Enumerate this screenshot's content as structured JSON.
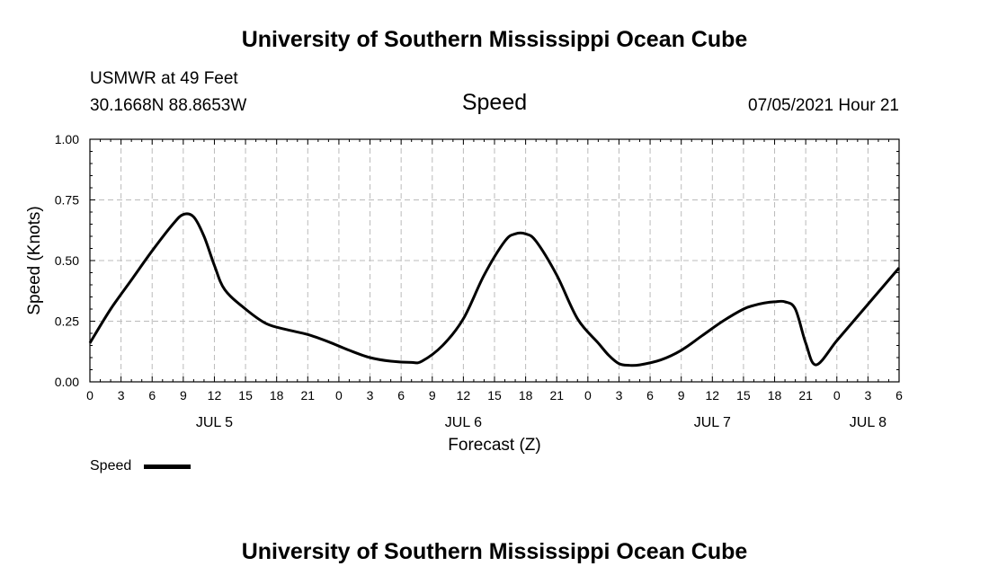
{
  "header": {
    "title_top": "University of Southern Mississippi Ocean Cube",
    "station": "USMWR at 49 Feet",
    "coords": "30.1668N  88.8653W",
    "chart_title": "Speed",
    "datetime": "07/05/2021 Hour 21"
  },
  "footer": {
    "title_bottom": "University of Southern Mississippi Ocean Cube"
  },
  "legend": {
    "label": "Speed"
  },
  "colors": {
    "line": "#000000",
    "grid": "#bbbbbb"
  },
  "chart_data": {
    "type": "line",
    "title": "Speed",
    "xlabel": "Forecast (Z)",
    "ylabel": "Speed (Knots)",
    "ylim": [
      0,
      1
    ],
    "xlim": [
      0,
      78
    ],
    "x_unit": "hours from 07/05 00Z",
    "grid": true,
    "legend_position": "bottom-left",
    "yticks": [
      {
        "value": 0,
        "label": "0.00"
      },
      {
        "value": 0.25,
        "label": "0.25"
      },
      {
        "value": 0.5,
        "label": "0.50"
      },
      {
        "value": 0.75,
        "label": "0.75"
      },
      {
        "value": 1,
        "label": "1.00"
      }
    ],
    "xticks": [
      {
        "value": 0,
        "label": "0"
      },
      {
        "value": 3,
        "label": "3"
      },
      {
        "value": 6,
        "label": "6"
      },
      {
        "value": 9,
        "label": "9"
      },
      {
        "value": 12,
        "label": "12"
      },
      {
        "value": 15,
        "label": "15"
      },
      {
        "value": 18,
        "label": "18"
      },
      {
        "value": 21,
        "label": "21"
      },
      {
        "value": 24,
        "label": "0"
      },
      {
        "value": 27,
        "label": "3"
      },
      {
        "value": 30,
        "label": "6"
      },
      {
        "value": 33,
        "label": "9"
      },
      {
        "value": 36,
        "label": "12"
      },
      {
        "value": 39,
        "label": "15"
      },
      {
        "value": 42,
        "label": "18"
      },
      {
        "value": 45,
        "label": "21"
      },
      {
        "value": 48,
        "label": "0"
      },
      {
        "value": 51,
        "label": "3"
      },
      {
        "value": 54,
        "label": "6"
      },
      {
        "value": 57,
        "label": "9"
      },
      {
        "value": 60,
        "label": "12"
      },
      {
        "value": 63,
        "label": "15"
      },
      {
        "value": 66,
        "label": "18"
      },
      {
        "value": 69,
        "label": "21"
      },
      {
        "value": 72,
        "label": "0"
      },
      {
        "value": 75,
        "label": "3"
      },
      {
        "value": 78,
        "label": "6"
      }
    ],
    "day_labels": [
      {
        "value": 12,
        "label": "JUL 5"
      },
      {
        "value": 36,
        "label": "JUL 6"
      },
      {
        "value": 60,
        "label": "JUL 7"
      },
      {
        "value": 75,
        "label": "JUL 8"
      }
    ],
    "series": [
      {
        "name": "Speed",
        "x": [
          0,
          2,
          4,
          6,
          8,
          9,
          10,
          11,
          12,
          13,
          15,
          17,
          19,
          21,
          23,
          25,
          27,
          29,
          31,
          32,
          34,
          36,
          38,
          40,
          41,
          42,
          43,
          45,
          47,
          49,
          50,
          51,
          52,
          53,
          55,
          57,
          59,
          61,
          63,
          64,
          65,
          66,
          67,
          68,
          69,
          70,
          72,
          74,
          76,
          78
        ],
        "y": [
          0.16,
          0.3,
          0.42,
          0.54,
          0.65,
          0.69,
          0.68,
          0.6,
          0.48,
          0.38,
          0.3,
          0.24,
          0.215,
          0.195,
          0.165,
          0.13,
          0.1,
          0.085,
          0.08,
          0.085,
          0.15,
          0.26,
          0.44,
          0.58,
          0.61,
          0.61,
          0.58,
          0.44,
          0.26,
          0.16,
          0.11,
          0.075,
          0.068,
          0.07,
          0.09,
          0.13,
          0.19,
          0.25,
          0.3,
          0.315,
          0.325,
          0.33,
          0.33,
          0.3,
          0.16,
          0.07,
          0.17,
          0.27,
          0.37,
          0.47
        ]
      }
    ]
  }
}
